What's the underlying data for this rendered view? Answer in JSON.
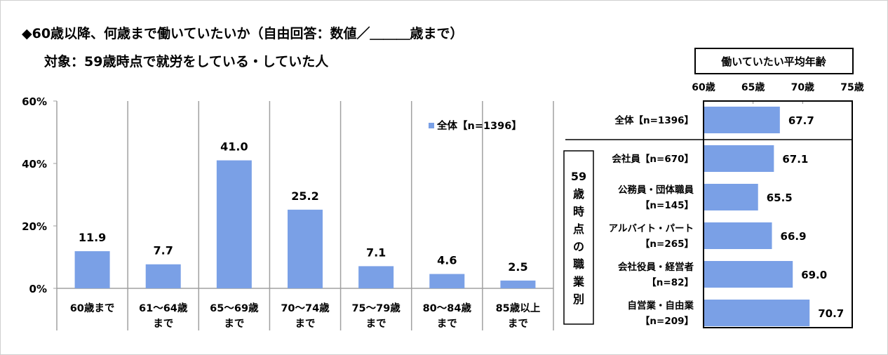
{
  "title": "◆60歳以降、何歳まで働いていたいか（自由回答：数値／＿＿＿歳まで）",
  "subtitle": "対象：59歳時点で就労をしている・していた人",
  "colors": {
    "bar": "#7aa0e6",
    "grid": "#a0a0a0"
  },
  "chart_data": [
    {
      "type": "bar",
      "title": "",
      "legend": "全体【n=1396】",
      "legend_position": "top-right",
      "categories": [
        [
          "60歳まで"
        ],
        [
          "61～64歳",
          "まで"
        ],
        [
          "65～69歳",
          "まで"
        ],
        [
          "70～74歳",
          "まで"
        ],
        [
          "75～79歳",
          "まで"
        ],
        [
          "80～84歳",
          "まで"
        ],
        [
          "85歳以上",
          "まで"
        ]
      ],
      "values": [
        11.9,
        7.7,
        41.0,
        25.2,
        7.1,
        4.6,
        2.5
      ],
      "value_labels": [
        "11.9",
        "7.7",
        "41.0",
        "25.2",
        "7.1",
        "4.6",
        "2.5"
      ],
      "yticks": [
        "0%",
        "20%",
        "40%",
        "60%"
      ],
      "ylim": [
        0,
        60
      ]
    },
    {
      "type": "bar",
      "orientation": "horizontal",
      "title": "働いていたい平均年齢",
      "xticks": [
        "60歳",
        "65歳",
        "70歳",
        "75歳"
      ],
      "xlim": [
        60,
        75
      ],
      "group_label": [
        "59",
        "歳",
        "時",
        "点",
        "の",
        "職",
        "業",
        "別"
      ],
      "categories": [
        [
          "全体【n=1396】"
        ],
        [
          "会社員【n=670】"
        ],
        [
          "公務員・団体職員",
          "【n=145】"
        ],
        [
          "アルバイト・パート",
          "【n=265】"
        ],
        [
          "会社役員・経営者",
          "【n=82】"
        ],
        [
          "自営業・自由業",
          "【n=209】"
        ]
      ],
      "values": [
        67.7,
        67.1,
        65.5,
        66.9,
        69.0,
        70.7
      ],
      "value_labels": [
        "67.7",
        "67.1",
        "65.5",
        "66.9",
        "69.0",
        "70.7"
      ]
    }
  ]
}
